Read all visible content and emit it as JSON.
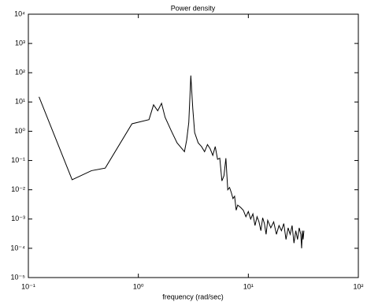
{
  "chart_data": {
    "type": "line",
    "title": "Power density",
    "x_label": "frequency (rad/sec)",
    "x": [
      0.125,
      0.25,
      0.375,
      0.5,
      0.875,
      1.25,
      1.375,
      1.5,
      1.625,
      1.75,
      2.0,
      2.25,
      2.5,
      2.625,
      2.75,
      2.875,
      3.0,
      3.125,
      3.25,
      3.5,
      3.75,
      4.0,
      4.25,
      4.5,
      4.75,
      5.0,
      5.25,
      5.5,
      5.75,
      6.0,
      6.25,
      6.5,
      6.75,
      7.0,
      7.25,
      7.5,
      7.75,
      8.0,
      8.5,
      9,
      9.5,
      10,
      10.5,
      11,
      11.5,
      12,
      12.5,
      13,
      13.5,
      14,
      14.5,
      15,
      16,
      17,
      18,
      19,
      20,
      21,
      22,
      23,
      24,
      25,
      26,
      27,
      28,
      29,
      30,
      30.5,
      31,
      31.5,
      32
    ],
    "values": [
      15,
      0.022,
      0.045,
      0.055,
      1.8,
      2.5,
      8,
      5,
      9,
      3,
      1.0,
      0.4,
      0.25,
      0.2,
      0.5,
      2,
      80,
      6,
      0.9,
      0.4,
      0.3,
      0.2,
      0.35,
      0.25,
      0.15,
      0.3,
      0.11,
      0.12,
      0.02,
      0.03,
      0.12,
      0.01,
      0.012,
      0.008,
      0.005,
      0.006,
      0.002,
      0.003,
      0.0025,
      0.002,
      0.0012,
      0.0018,
      0.001,
      0.0015,
      0.0006,
      0.0012,
      0.0008,
      0.0004,
      0.0011,
      0.0007,
      0.0003,
      0.0009,
      0.0005,
      0.0008,
      0.0003,
      0.0006,
      0.0004,
      0.0007,
      0.0002,
      0.0005,
      0.0003,
      0.0006,
      0.00015,
      0.0004,
      0.0002,
      0.0005,
      0.0003,
      0.0001,
      0.0004,
      0.0002,
      0.0004
    ],
    "color": "#000000",
    "xscale": "log",
    "yscale": "log",
    "xlim": [
      0.1,
      100
    ],
    "xticks": [
      {
        "value": 0.1,
        "label": "10⁻¹"
      },
      {
        "value": 1,
        "label": "10⁰"
      },
      {
        "value": 10,
        "label": "10¹"
      },
      {
        "value": 100,
        "label": "10²"
      }
    ],
    "ylim": [
      1e-05,
      10000
    ],
    "yticks": [
      {
        "value": 1e-05,
        "label": "10⁻⁵"
      },
      {
        "value": 0.0001,
        "label": "10⁻⁴"
      },
      {
        "value": 0.001,
        "label": "10⁻³"
      },
      {
        "value": 0.01,
        "label": "10⁻²"
      },
      {
        "value": 0.1,
        "label": "10⁻¹"
      },
      {
        "value": 1,
        "label": "10⁰"
      },
      {
        "value": 10,
        "label": "10¹"
      },
      {
        "value": 100,
        "label": "10²"
      },
      {
        "value": 1000,
        "label": "10³"
      },
      {
        "value": 10000,
        "label": "10⁴"
      }
    ]
  }
}
